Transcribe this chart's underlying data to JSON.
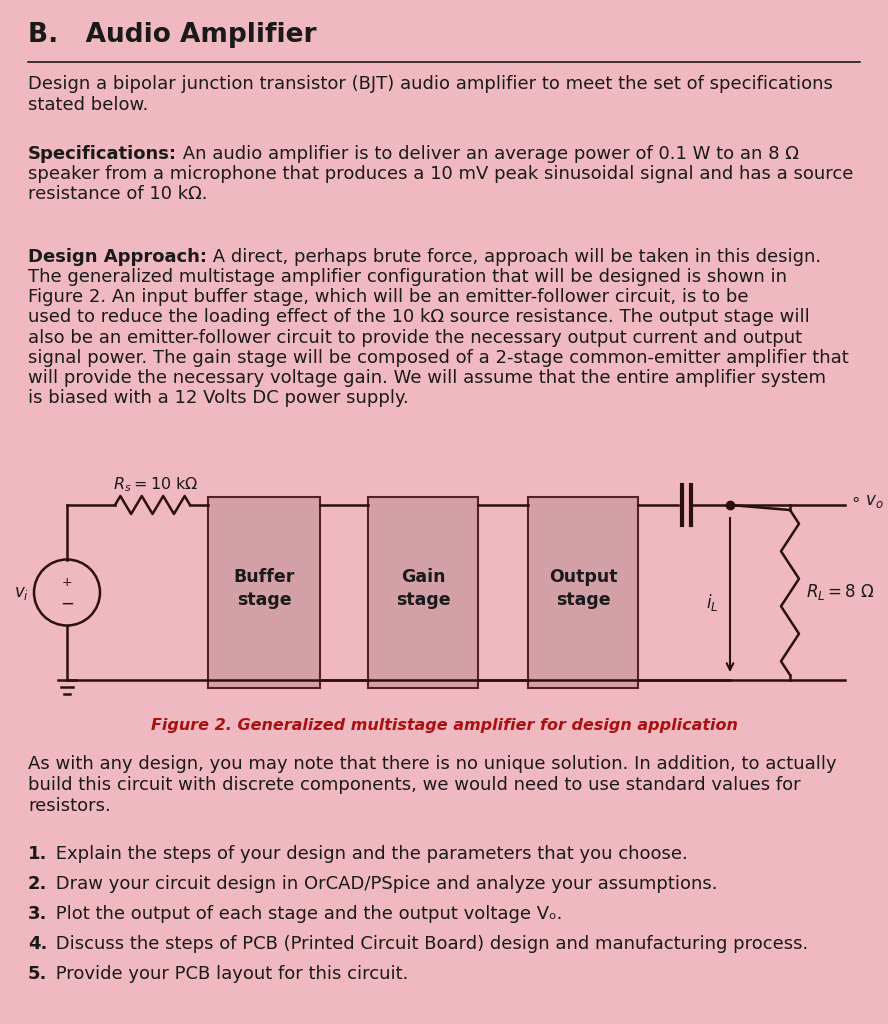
{
  "bg_color": "#f0b8c0",
  "text_color": "#1a1a1a",
  "line_color": "#2a1010",
  "box_color": "#d4a0a8",
  "box_edge_color": "#5a2020",
  "fig_caption_color": "#aa1010",
  "title": "B.   Audio Amplifier",
  "para1": "Design a bipolar junction transistor (BJT) audio amplifier to meet the set of specifications\nstated below.",
  "spec_bold": "Specifications:",
  "spec_rest": " An audio amplifier is to deliver an average power of 0.1 W to an 8 Ω speaker from a microphone that produces a 10 mV peak sinusoidal signal and has a source resistance of 10 kΩ.",
  "da_bold": "Design Approach:",
  "da_rest": " A direct, perhaps brute force, approach will be taken in this design. The generalized multistage amplifier configuration that will be designed is shown in Figure 2. An input buffer stage, which will be an emitter-follower circuit, is to be used to reduce the loading effect of the 10 kΩ source resistance. The output stage will also be an emitter-follower circuit to provide the necessary output current and output signal power. The gain stage will be composed of a 2-stage common-emitter amplifier that will provide the necessary voltage gain. We will assume that the entire amplifier system is biased with a 12 Volts DC power supply.",
  "fig_caption": "Figure 2. Generalized multistage amplifier for design application",
  "para4": "As with any design, you may note that there is no unique solution. In addition, to actually\nbuild this circuit with discrete components, we would need to use standard values for\nresistors.",
  "list": [
    [
      "1.",
      " Explain the steps of your design and the parameters that you choose."
    ],
    [
      "2.",
      " Draw your circuit design in OrCAD/PSpice and analyze your assumptions."
    ],
    [
      "3.",
      " Plot the output of each stage and the output voltage Vₒ."
    ],
    [
      "4.",
      " Discuss the steps of PCB (Printed Circuit Board) design and manufacturing process."
    ],
    [
      "5.",
      " Provide your PCB layout for this circuit."
    ]
  ]
}
